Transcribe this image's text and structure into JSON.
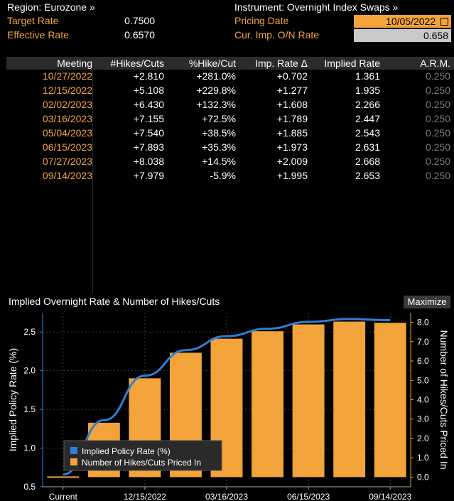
{
  "header": {
    "region_label": "Region: Eurozone »",
    "instrument_label": "Instrument: Overnight Index Swaps »",
    "target_rate_label": "Target Rate",
    "target_rate_value": "0.7500",
    "effective_rate_label": "Effective Rate",
    "effective_rate_value": "0.6570",
    "pricing_date_label": "Pricing Date",
    "pricing_date_value": "10/05/2022",
    "cur_imp_label": "Cur. Imp. O/N Rate",
    "cur_imp_value": "0.658"
  },
  "table": {
    "columns": [
      "Meeting",
      "#Hikes/Cuts",
      "%Hike/Cut",
      "Imp. Rate Δ",
      "Implied Rate",
      "A.R.M."
    ],
    "rows": [
      [
        "10/27/2022",
        "+2.810",
        "+281.0%",
        "+0.702",
        "1.361",
        "0.250"
      ],
      [
        "12/15/2022",
        "+5.108",
        "+229.8%",
        "+1.277",
        "1.935",
        "0.250"
      ],
      [
        "02/02/2023",
        "+6.430",
        "+132.3%",
        "+1.608",
        "2.266",
        "0.250"
      ],
      [
        "03/16/2023",
        "+7.155",
        "+72.5%",
        "+1.789",
        "2.447",
        "0.250"
      ],
      [
        "05/04/2023",
        "+7.540",
        "+38.5%",
        "+1.885",
        "2.543",
        "0.250"
      ],
      [
        "06/15/2023",
        "+7.893",
        "+35.3%",
        "+1.973",
        "2.631",
        "0.250"
      ],
      [
        "07/27/2023",
        "+8.038",
        "+14.5%",
        "+2.009",
        "2.668",
        "0.250"
      ],
      [
        "09/14/2023",
        "+7.979",
        "-5.9%",
        "+1.995",
        "2.653",
        "0.250"
      ]
    ]
  },
  "chart_panel": {
    "title": "Implied Overnight Rate & Number of Hikes/Cuts",
    "maximize_label": "Maximize"
  },
  "colors": {
    "accent_orange": "#f2a33a",
    "line_blue": "#2e7fd8",
    "header_gray": "#2b2b2b"
  },
  "chart_data": {
    "type": "bar",
    "categories": [
      "Current",
      "10/27/2022",
      "12/15/2022",
      "02/02/2023",
      "03/16/2023",
      "05/04/2023",
      "06/15/2023",
      "07/27/2023",
      "09/14/2023"
    ],
    "x_tick_labels": [
      "Current",
      "12/15/2022",
      "03/16/2023",
      "06/15/2023",
      "09/14/2023"
    ],
    "series": [
      {
        "name": "Implied Policy Rate (%)",
        "type": "line",
        "axis": "left",
        "values": [
          0.658,
          1.361,
          1.935,
          2.266,
          2.447,
          2.543,
          2.631,
          2.668,
          2.653
        ]
      },
      {
        "name": "Number of Hikes/Cuts Priced In",
        "type": "bar",
        "axis": "right",
        "values": [
          0,
          2.81,
          5.108,
          6.43,
          7.155,
          7.54,
          7.893,
          8.038,
          7.979
        ]
      }
    ],
    "ylabel_left": "Implied Policy Rate (%)",
    "ylabel_right": "Number of Hikes/Cuts Priced In",
    "ylim_left": [
      0.5,
      2.75
    ],
    "ylim_right": [
      -0.5,
      8.5
    ],
    "yticks_left": [
      "0.5",
      "1.0",
      "1.5",
      "2.0",
      "2.5"
    ],
    "yticks_right": [
      "0.0",
      "1.0",
      "2.0",
      "3.0",
      "4.0",
      "5.0",
      "6.0",
      "7.0",
      "8.0"
    ],
    "legend_position": "bottom-left"
  }
}
